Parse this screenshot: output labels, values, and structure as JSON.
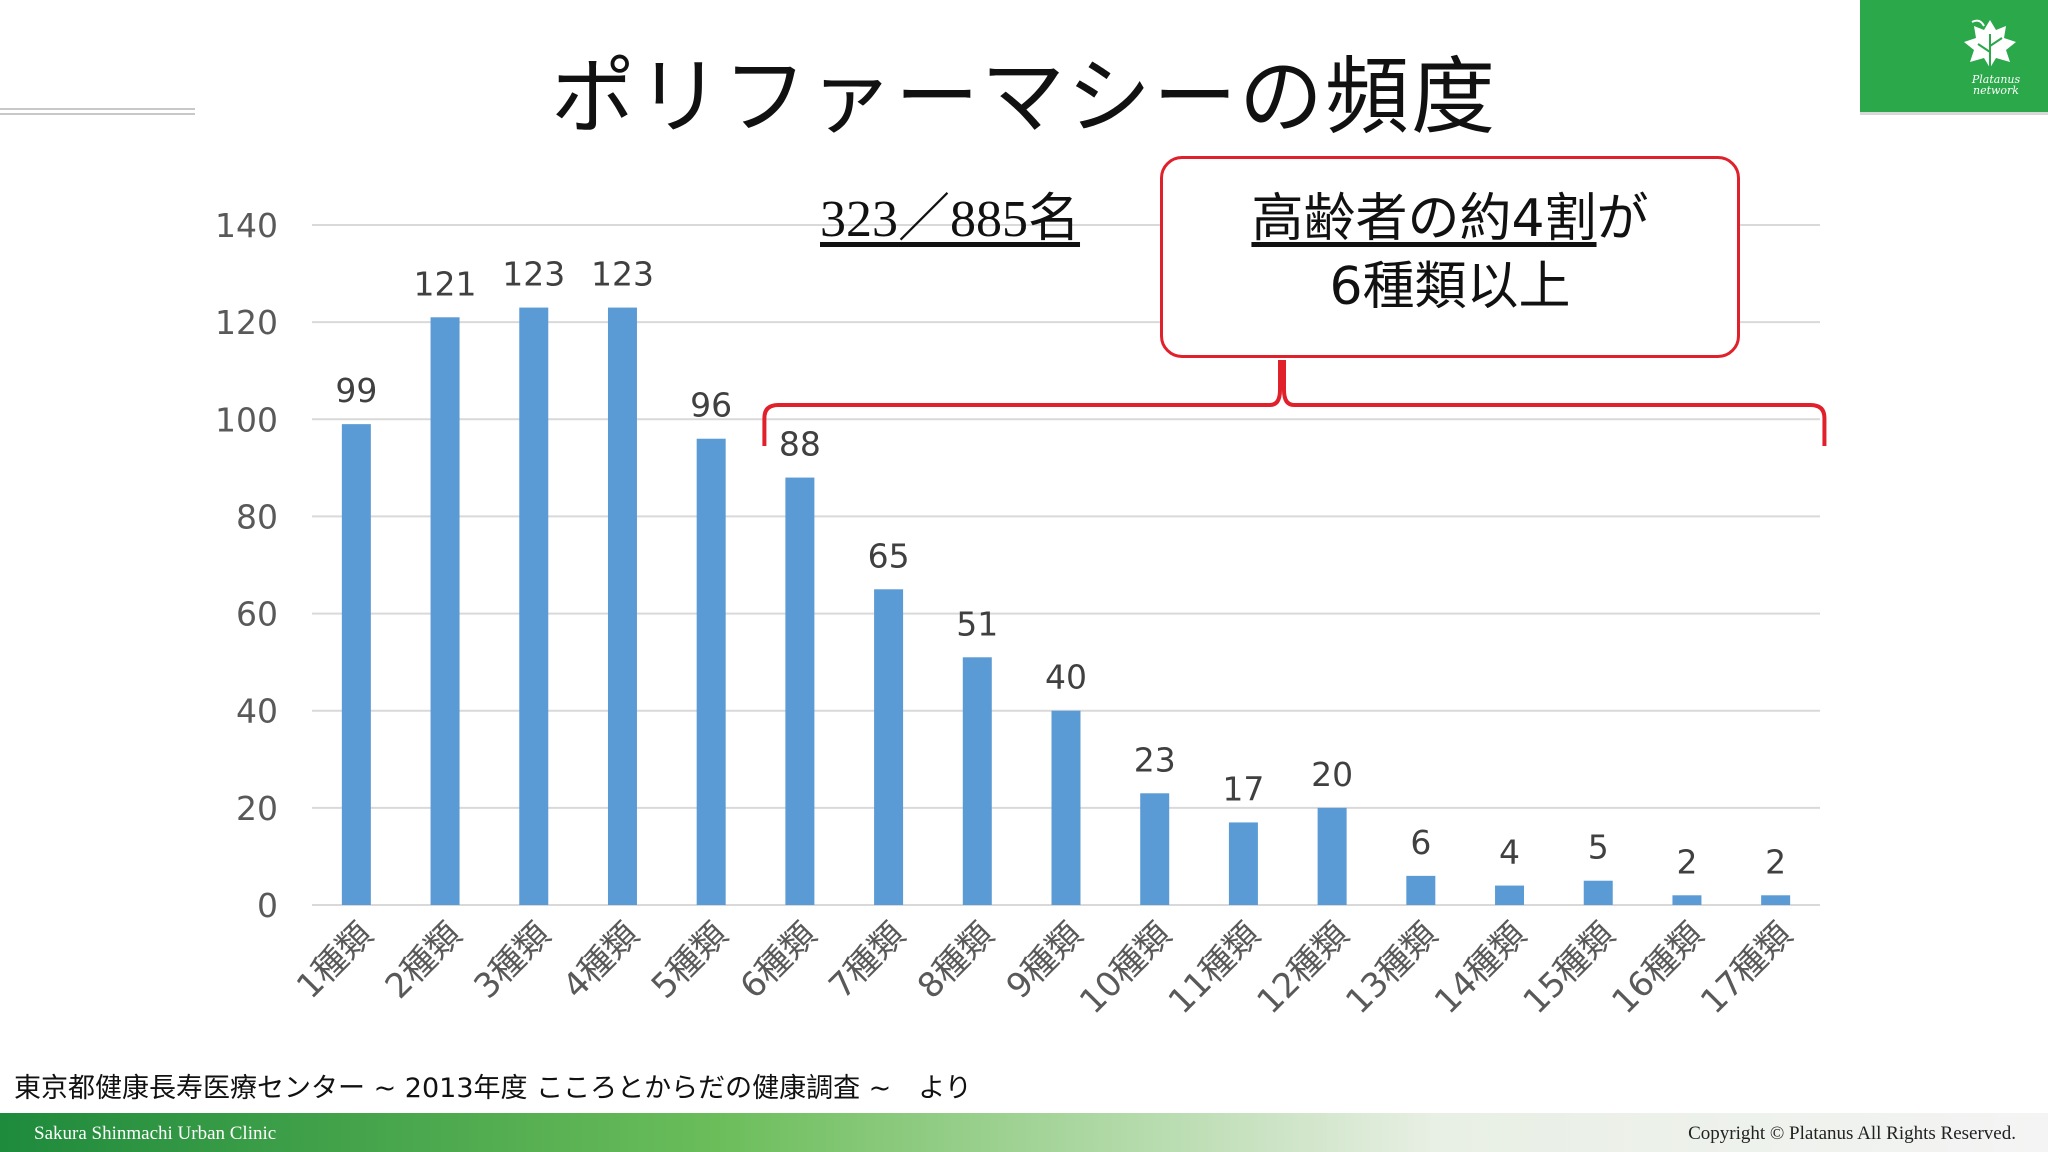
{
  "slide": {
    "title": "ポリファーマシーの頻度",
    "ratio_label": "323／885名",
    "callout": {
      "line1_underlined": "高齢者の約4割",
      "line1_rest": "が",
      "line2": "6種類以上"
    },
    "source_note": "東京都健康長寿医療センター ~ 2013年度 こころとからだの健康調査 ~　より",
    "logo": {
      "line1": "Platanus",
      "line2": "network"
    }
  },
  "footer": {
    "left": "Sakura Shinmachi Urban Clinic",
    "right": "Copyright © Platanus All Rights Reserved."
  },
  "colors": {
    "bar": "#5b9bd5",
    "grid": "#d9d9d9",
    "bracket": "#e0202a",
    "brand_green": "#2aa84a"
  },
  "chart_data": {
    "type": "bar",
    "title": "",
    "xlabel": "",
    "ylabel": "",
    "ylim": [
      0,
      140
    ],
    "yticks": [
      0,
      20,
      40,
      60,
      80,
      100,
      120,
      140
    ],
    "categories": [
      "1種類",
      "2種類",
      "3種類",
      "4種類",
      "5種類",
      "6種類",
      "7種類",
      "8種類",
      "9種類",
      "10種類",
      "11種類",
      "12種類",
      "13種類",
      "14種類",
      "15種類",
      "16種類",
      "17種類"
    ],
    "values": [
      99,
      121,
      123,
      123,
      96,
      88,
      65,
      51,
      40,
      23,
      17,
      20,
      6,
      4,
      5,
      2,
      2
    ],
    "bracket_range": [
      "6種類",
      "17種類"
    ]
  }
}
